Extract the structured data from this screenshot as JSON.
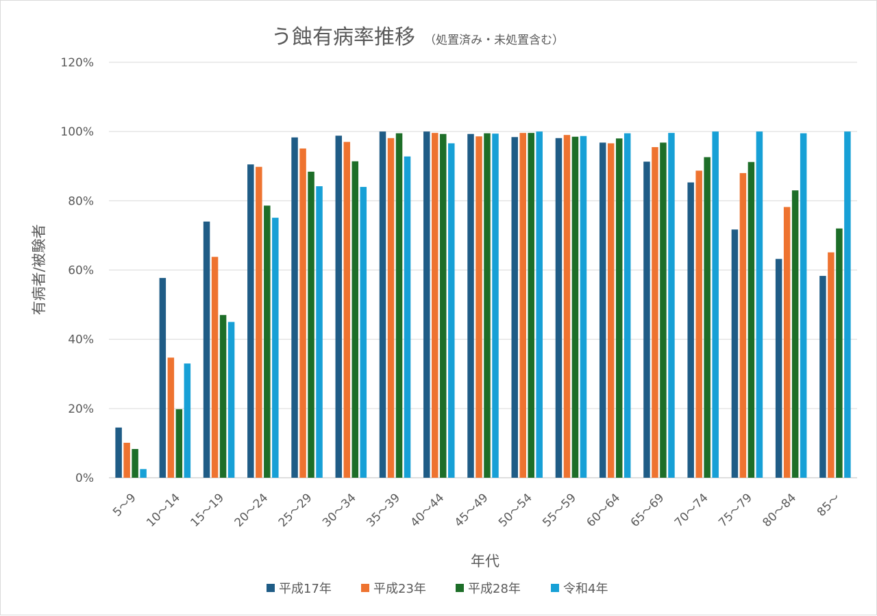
{
  "chart_data": {
    "type": "bar",
    "title": "う蝕有病率推移",
    "subtitle": "（処置済み・未処置含む）",
    "xlabel": "年代",
    "ylabel": "有病者/被験者",
    "ylim": [
      0,
      120
    ],
    "yticks": [
      "0%",
      "20%",
      "40%",
      "60%",
      "80%",
      "100%",
      "120%"
    ],
    "grid": true,
    "legend_position": "bottom",
    "categories": [
      "5～9",
      "10～14",
      "15～19",
      "20～24",
      "25～29",
      "30～34",
      "35～39",
      "40～44",
      "45～49",
      "50～54",
      "55～59",
      "60～64",
      "65～69",
      "70～74",
      "75～79",
      "80～84",
      "85～"
    ],
    "series": [
      {
        "name": "平成17年",
        "color": "#1f5c86",
        "values": [
          14.5,
          57.7,
          74.0,
          90.5,
          98.3,
          98.8,
          100,
          100,
          99.3,
          98.4,
          98.1,
          96.8,
          91.3,
          85.3,
          71.7,
          63.2,
          58.3
        ]
      },
      {
        "name": "平成23年",
        "color": "#ee7330",
        "values": [
          10.1,
          34.7,
          63.8,
          89.8,
          95.1,
          97.0,
          98.1,
          99.6,
          98.6,
          99.6,
          99.0,
          96.6,
          95.5,
          88.7,
          88.0,
          78.2,
          65.1
        ]
      },
      {
        "name": "平成28年",
        "color": "#1d6e28",
        "values": [
          8.3,
          19.8,
          47.0,
          78.6,
          88.4,
          91.4,
          99.5,
          99.3,
          99.5,
          99.6,
          98.5,
          98.0,
          96.8,
          92.6,
          91.2,
          83.0,
          72.0
        ]
      },
      {
        "name": "令和4年",
        "color": "#17a0d6",
        "values": [
          2.5,
          33.0,
          45.0,
          75.1,
          84.2,
          84.0,
          92.8,
          96.6,
          99.4,
          100,
          98.7,
          99.5,
          99.6,
          100,
          100,
          99.5,
          100
        ]
      }
    ]
  }
}
